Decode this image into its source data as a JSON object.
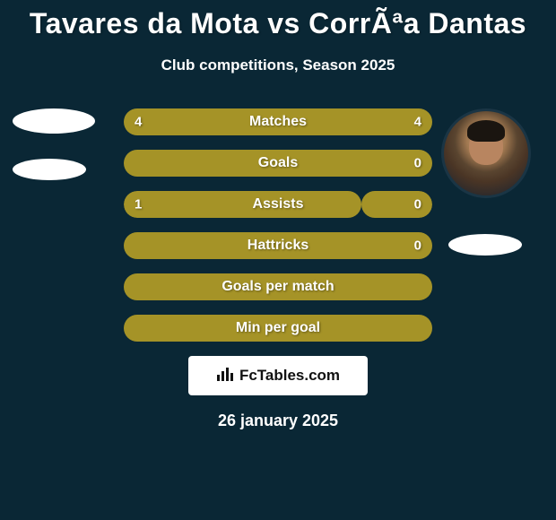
{
  "title": "Tavares da Mota vs CorrÃªa Dantas",
  "subtitle": "Club competitions, Season 2025",
  "date": "26 january 2025",
  "branding_text": "FcTables.com",
  "colors": {
    "background": "#0a2735",
    "bar_primary": "#a59327",
    "text": "#ffffff",
    "branding_bg": "#ffffff",
    "branding_text": "#111111"
  },
  "avatars": {
    "left_has_photo": false,
    "right_has_photo": true
  },
  "stats": [
    {
      "label": "Matches",
      "left_value": "4",
      "right_value": "4",
      "left_color": "#a59327",
      "right_color": "#a59327",
      "left_pct": 50,
      "right_pct": 50,
      "show_values": true,
      "alt_bg": false
    },
    {
      "label": "Goals",
      "left_value": "",
      "right_value": "0",
      "left_color": "#a59327",
      "right_color": "#a59327",
      "left_pct": 50,
      "right_pct": 50,
      "show_values": true,
      "alt_bg": false
    },
    {
      "label": "Assists",
      "left_value": "1",
      "right_value": "0",
      "left_color": "#a59327",
      "right_color": "#a59327",
      "left_pct": 77,
      "right_pct": 23,
      "show_values": true,
      "alt_bg": true
    },
    {
      "label": "Hattricks",
      "left_value": "",
      "right_value": "0",
      "left_color": "#a59327",
      "right_color": "#a59327",
      "left_pct": 50,
      "right_pct": 50,
      "show_values": true,
      "alt_bg": false
    },
    {
      "label": "Goals per match",
      "left_value": "",
      "right_value": "",
      "left_color": "#a59327",
      "right_color": "#a59327",
      "left_pct": 100,
      "right_pct": 0,
      "show_values": false,
      "alt_bg": false
    },
    {
      "label": "Min per goal",
      "left_value": "",
      "right_value": "",
      "left_color": "#a59327",
      "right_color": "#a59327",
      "left_pct": 50,
      "right_pct": 50,
      "show_values": false,
      "alt_bg": false
    }
  ]
}
